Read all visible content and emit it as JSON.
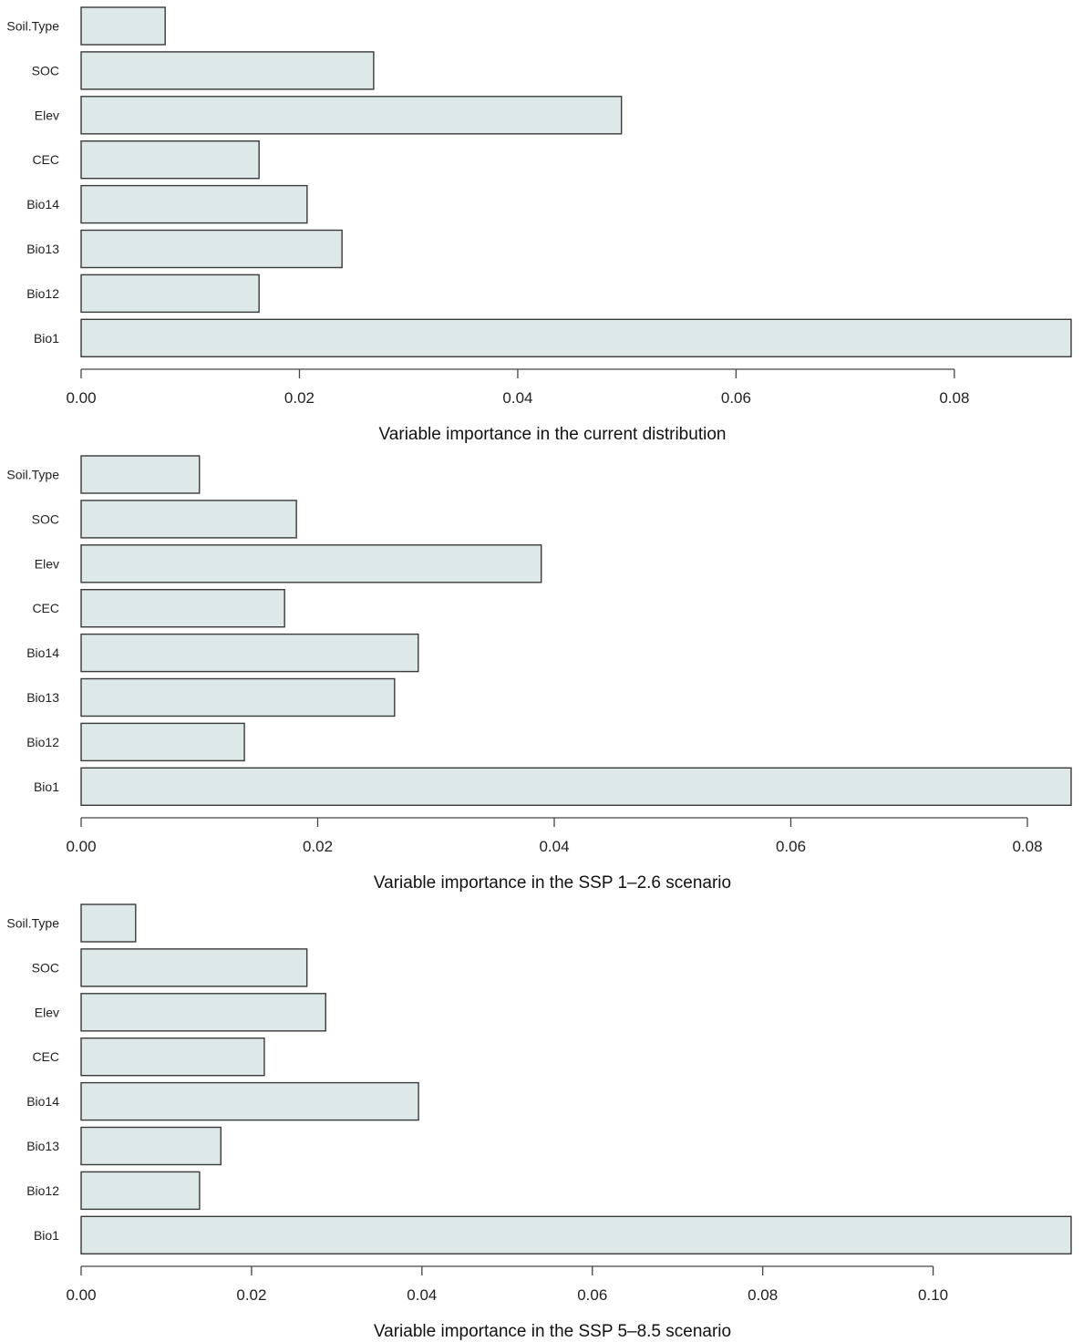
{
  "colors": {
    "bar_fill": "#dde8e8",
    "bar_stroke": "#3a3a3a",
    "text": "#222222"
  },
  "chart_data": [
    {
      "type": "bar",
      "orientation": "horizontal",
      "title": "Variable importance in the current distribution",
      "categories": [
        "Soil.Type",
        "SOC",
        "Elev",
        "CEC",
        "Bio14",
        "Bio13",
        "Bio12",
        "Bio1"
      ],
      "values": [
        0.0077,
        0.0268,
        0.0495,
        0.0163,
        0.0207,
        0.0239,
        0.0163,
        0.0907
      ],
      "xticks": [
        "0.00",
        "0.02",
        "0.04",
        "0.06",
        "0.08"
      ],
      "xlim": [
        0,
        0.0907
      ]
    },
    {
      "type": "bar",
      "orientation": "horizontal",
      "title": "Variable importance in the SSP 1–2.6 scenario",
      "categories": [
        "Soil.Type",
        "SOC",
        "Elev",
        "CEC",
        "Bio14",
        "Bio13",
        "Bio12",
        "Bio1"
      ],
      "values": [
        0.01,
        0.0182,
        0.0389,
        0.0172,
        0.0285,
        0.0265,
        0.0138,
        0.0837
      ],
      "xticks": [
        "0.00",
        "0.02",
        "0.04",
        "0.06",
        "0.08"
      ],
      "xlim": [
        0,
        0.0837
      ]
    },
    {
      "type": "bar",
      "orientation": "horizontal",
      "title": "Variable importance in the SSP 5–8.5 scenario",
      "categories": [
        "Soil.Type",
        "SOC",
        "Elev",
        "CEC",
        "Bio14",
        "Bio13",
        "Bio12",
        "Bio1"
      ],
      "values": [
        0.0064,
        0.0265,
        0.0287,
        0.0215,
        0.0396,
        0.0164,
        0.0139,
        0.1162
      ],
      "xticks": [
        "0.00",
        "0.02",
        "0.04",
        "0.06",
        "0.08",
        "0.10"
      ],
      "xlim": [
        0,
        0.1162
      ]
    }
  ]
}
